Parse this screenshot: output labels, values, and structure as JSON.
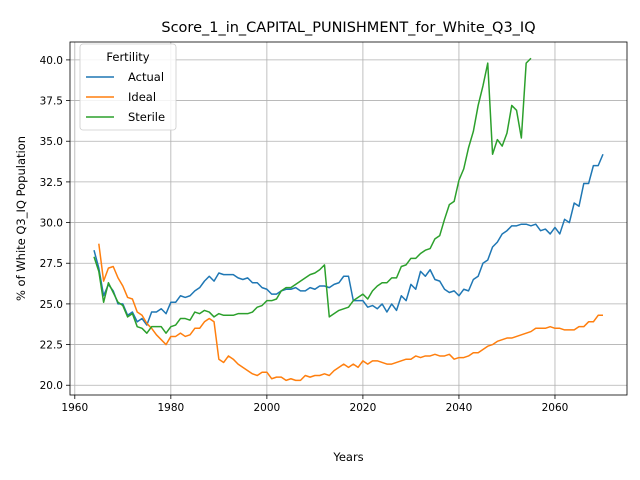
{
  "chart_data": {
    "type": "line",
    "title": "Score_1_in_CAPITAL_PUNISHMENT_for_White_Q3_IQ",
    "xlabel": "Years",
    "ylabel": "% of White Q3_IQ Population",
    "xlim": [
      1959,
      2075
    ],
    "ylim": [
      19.4,
      41.1
    ],
    "xticks": [
      1960,
      1980,
      2000,
      2020,
      2040,
      2060
    ],
    "yticks": [
      20.0,
      22.5,
      25.0,
      27.5,
      30.0,
      32.5,
      35.0,
      37.5,
      40.0
    ],
    "xtick_labels": [
      "1960",
      "1980",
      "2000",
      "2020",
      "2040",
      "2060"
    ],
    "ytick_labels": [
      "20.0",
      "22.5",
      "25.0",
      "27.5",
      "30.0",
      "32.5",
      "35.0",
      "37.5",
      "40.0"
    ],
    "grid": true,
    "legend": {
      "title": "Fertility",
      "position": "top-left"
    },
    "series": [
      {
        "name": "Actual",
        "color": "#1f77b4",
        "points": [
          [
            1964,
            28.3
          ],
          [
            1965,
            27.2
          ],
          [
            1966,
            25.5
          ],
          [
            1967,
            26.2
          ],
          [
            1968,
            25.8
          ],
          [
            1969,
            25.0
          ],
          [
            1970,
            25.0
          ],
          [
            1971,
            24.3
          ],
          [
            1972,
            24.5
          ],
          [
            1973,
            23.9
          ],
          [
            1974,
            24.1
          ],
          [
            1975,
            23.7
          ],
          [
            1976,
            24.5
          ],
          [
            1977,
            24.5
          ],
          [
            1978,
            24.7
          ],
          [
            1979,
            24.4
          ],
          [
            1980,
            25.1
          ],
          [
            1981,
            25.1
          ],
          [
            1982,
            25.5
          ],
          [
            1983,
            25.4
          ],
          [
            1984,
            25.5
          ],
          [
            1985,
            25.8
          ],
          [
            1986,
            26.0
          ],
          [
            1987,
            26.4
          ],
          [
            1988,
            26.7
          ],
          [
            1989,
            26.4
          ],
          [
            1990,
            26.9
          ],
          [
            1991,
            26.8
          ],
          [
            1992,
            26.8
          ],
          [
            1993,
            26.8
          ],
          [
            1994,
            26.6
          ],
          [
            1995,
            26.5
          ],
          [
            1996,
            26.6
          ],
          [
            1997,
            26.3
          ],
          [
            1998,
            26.3
          ],
          [
            1999,
            26.0
          ],
          [
            2000,
            25.9
          ],
          [
            2001,
            25.6
          ],
          [
            2002,
            25.6
          ],
          [
            2003,
            25.8
          ],
          [
            2004,
            25.9
          ],
          [
            2005,
            25.9
          ],
          [
            2006,
            26.0
          ],
          [
            2007,
            25.8
          ],
          [
            2008,
            25.8
          ],
          [
            2009,
            26.0
          ],
          [
            2010,
            25.9
          ],
          [
            2011,
            26.1
          ],
          [
            2012,
            26.1
          ],
          [
            2013,
            26.0
          ],
          [
            2014,
            26.2
          ],
          [
            2015,
            26.3
          ],
          [
            2016,
            26.7
          ],
          [
            2017,
            26.7
          ],
          [
            2018,
            25.2
          ],
          [
            2019,
            25.2
          ],
          [
            2020,
            25.2
          ],
          [
            2021,
            24.8
          ],
          [
            2022,
            24.9
          ],
          [
            2023,
            24.7
          ],
          [
            2024,
            25.0
          ],
          [
            2025,
            24.5
          ],
          [
            2026,
            25.0
          ],
          [
            2027,
            24.6
          ],
          [
            2028,
            25.5
          ],
          [
            2029,
            25.2
          ],
          [
            2030,
            26.2
          ],
          [
            2031,
            25.9
          ],
          [
            2032,
            27.0
          ],
          [
            2033,
            26.7
          ],
          [
            2034,
            27.1
          ],
          [
            2035,
            26.5
          ],
          [
            2036,
            26.4
          ],
          [
            2037,
            25.9
          ],
          [
            2038,
            25.7
          ],
          [
            2039,
            25.8
          ],
          [
            2040,
            25.5
          ],
          [
            2041,
            25.9
          ],
          [
            2042,
            25.8
          ],
          [
            2043,
            26.5
          ],
          [
            2044,
            26.7
          ],
          [
            2045,
            27.5
          ],
          [
            2046,
            27.7
          ],
          [
            2047,
            28.5
          ],
          [
            2048,
            28.8
          ],
          [
            2049,
            29.3
          ],
          [
            2050,
            29.5
          ],
          [
            2051,
            29.8
          ],
          [
            2052,
            29.8
          ],
          [
            2053,
            29.9
          ],
          [
            2054,
            29.9
          ],
          [
            2055,
            29.8
          ],
          [
            2056,
            29.9
          ],
          [
            2057,
            29.5
          ],
          [
            2058,
            29.6
          ],
          [
            2059,
            29.3
          ],
          [
            2060,
            29.7
          ],
          [
            2061,
            29.3
          ],
          [
            2062,
            30.2
          ],
          [
            2063,
            30.0
          ],
          [
            2064,
            31.2
          ],
          [
            2065,
            31.0
          ],
          [
            2066,
            32.4
          ],
          [
            2067,
            32.4
          ],
          [
            2068,
            33.5
          ],
          [
            2069,
            33.5
          ],
          [
            2070,
            34.2
          ]
        ]
      },
      {
        "name": "Ideal",
        "color": "#ff7f0e",
        "points": [
          [
            1965,
            28.7
          ],
          [
            1966,
            26.4
          ],
          [
            1967,
            27.2
          ],
          [
            1968,
            27.3
          ],
          [
            1969,
            26.6
          ],
          [
            1970,
            26.1
          ],
          [
            1971,
            25.4
          ],
          [
            1972,
            25.3
          ],
          [
            1973,
            24.5
          ],
          [
            1974,
            24.3
          ],
          [
            1975,
            23.8
          ],
          [
            1976,
            23.5
          ],
          [
            1977,
            23.1
          ],
          [
            1978,
            22.8
          ],
          [
            1979,
            22.5
          ],
          [
            1980,
            23.0
          ],
          [
            1981,
            23.0
          ],
          [
            1982,
            23.2
          ],
          [
            1983,
            23.0
          ],
          [
            1984,
            23.1
          ],
          [
            1985,
            23.5
          ],
          [
            1986,
            23.5
          ],
          [
            1987,
            23.9
          ],
          [
            1988,
            24.1
          ],
          [
            1989,
            23.9
          ],
          [
            1990,
            21.6
          ],
          [
            1991,
            21.4
          ],
          [
            1992,
            21.8
          ],
          [
            1993,
            21.6
          ],
          [
            1994,
            21.3
          ],
          [
            1995,
            21.1
          ],
          [
            1996,
            20.9
          ],
          [
            1997,
            20.7
          ],
          [
            1998,
            20.6
          ],
          [
            1999,
            20.8
          ],
          [
            2000,
            20.8
          ],
          [
            2001,
            20.4
          ],
          [
            2002,
            20.5
          ],
          [
            2003,
            20.5
          ],
          [
            2004,
            20.3
          ],
          [
            2005,
            20.4
          ],
          [
            2006,
            20.3
          ],
          [
            2007,
            20.3
          ],
          [
            2008,
            20.6
          ],
          [
            2009,
            20.5
          ],
          [
            2010,
            20.6
          ],
          [
            2011,
            20.6
          ],
          [
            2012,
            20.7
          ],
          [
            2013,
            20.6
          ],
          [
            2014,
            20.9
          ],
          [
            2015,
            21.1
          ],
          [
            2016,
            21.3
          ],
          [
            2017,
            21.1
          ],
          [
            2018,
            21.3
          ],
          [
            2019,
            21.1
          ],
          [
            2020,
            21.5
          ],
          [
            2021,
            21.3
          ],
          [
            2022,
            21.5
          ],
          [
            2023,
            21.5
          ],
          [
            2024,
            21.4
          ],
          [
            2025,
            21.3
          ],
          [
            2026,
            21.3
          ],
          [
            2027,
            21.4
          ],
          [
            2028,
            21.5
          ],
          [
            2029,
            21.6
          ],
          [
            2030,
            21.6
          ],
          [
            2031,
            21.8
          ],
          [
            2032,
            21.7
          ],
          [
            2033,
            21.8
          ],
          [
            2034,
            21.8
          ],
          [
            2035,
            21.9
          ],
          [
            2036,
            21.8
          ],
          [
            2037,
            21.8
          ],
          [
            2038,
            21.9
          ],
          [
            2039,
            21.6
          ],
          [
            2040,
            21.7
          ],
          [
            2041,
            21.7
          ],
          [
            2042,
            21.8
          ],
          [
            2043,
            22.0
          ],
          [
            2044,
            22.0
          ],
          [
            2045,
            22.2
          ],
          [
            2046,
            22.4
          ],
          [
            2047,
            22.5
          ],
          [
            2048,
            22.7
          ],
          [
            2049,
            22.8
          ],
          [
            2050,
            22.9
          ],
          [
            2051,
            22.9
          ],
          [
            2052,
            23.0
          ],
          [
            2053,
            23.1
          ],
          [
            2054,
            23.2
          ],
          [
            2055,
            23.3
          ],
          [
            2056,
            23.5
          ],
          [
            2057,
            23.5
          ],
          [
            2058,
            23.5
          ],
          [
            2059,
            23.6
          ],
          [
            2060,
            23.5
          ],
          [
            2061,
            23.5
          ],
          [
            2062,
            23.4
          ],
          [
            2063,
            23.4
          ],
          [
            2064,
            23.4
          ],
          [
            2065,
            23.6
          ],
          [
            2066,
            23.6
          ],
          [
            2067,
            23.9
          ],
          [
            2068,
            23.9
          ],
          [
            2069,
            24.3
          ],
          [
            2070,
            24.3
          ]
        ]
      },
      {
        "name": "Sterile",
        "color": "#2ca02c",
        "points": [
          [
            1964,
            27.9
          ],
          [
            1965,
            27.0
          ],
          [
            1966,
            25.1
          ],
          [
            1967,
            26.3
          ],
          [
            1968,
            25.7
          ],
          [
            1969,
            25.1
          ],
          [
            1970,
            24.9
          ],
          [
            1971,
            24.2
          ],
          [
            1972,
            24.4
          ],
          [
            1973,
            23.6
          ],
          [
            1974,
            23.5
          ],
          [
            1975,
            23.2
          ],
          [
            1976,
            23.6
          ],
          [
            1977,
            23.6
          ],
          [
            1978,
            23.6
          ],
          [
            1979,
            23.2
          ],
          [
            1980,
            23.6
          ],
          [
            1981,
            23.7
          ],
          [
            1982,
            24.1
          ],
          [
            1983,
            24.1
          ],
          [
            1984,
            24.0
          ],
          [
            1985,
            24.5
          ],
          [
            1986,
            24.4
          ],
          [
            1987,
            24.6
          ],
          [
            1988,
            24.5
          ],
          [
            1989,
            24.2
          ],
          [
            1990,
            24.4
          ],
          [
            1991,
            24.3
          ],
          [
            1992,
            24.3
          ],
          [
            1993,
            24.3
          ],
          [
            1994,
            24.4
          ],
          [
            1995,
            24.4
          ],
          [
            1996,
            24.4
          ],
          [
            1997,
            24.5
          ],
          [
            1998,
            24.8
          ],
          [
            1999,
            24.9
          ],
          [
            2000,
            25.2
          ],
          [
            2001,
            25.2
          ],
          [
            2002,
            25.3
          ],
          [
            2003,
            25.8
          ],
          [
            2004,
            26.0
          ],
          [
            2005,
            26.0
          ],
          [
            2006,
            26.2
          ],
          [
            2007,
            26.4
          ],
          [
            2008,
            26.6
          ],
          [
            2009,
            26.8
          ],
          [
            2010,
            26.9
          ],
          [
            2011,
            27.1
          ],
          [
            2012,
            27.4
          ],
          [
            2013,
            24.2
          ],
          [
            2014,
            24.4
          ],
          [
            2015,
            24.6
          ],
          [
            2016,
            24.7
          ],
          [
            2017,
            24.8
          ],
          [
            2018,
            25.2
          ],
          [
            2019,
            25.4
          ],
          [
            2020,
            25.6
          ],
          [
            2021,
            25.3
          ],
          [
            2022,
            25.8
          ],
          [
            2023,
            26.1
          ],
          [
            2024,
            26.3
          ],
          [
            2025,
            26.3
          ],
          [
            2026,
            26.6
          ],
          [
            2027,
            26.6
          ],
          [
            2028,
            27.3
          ],
          [
            2029,
            27.4
          ],
          [
            2030,
            27.8
          ],
          [
            2031,
            27.8
          ],
          [
            2032,
            28.1
          ],
          [
            2033,
            28.3
          ],
          [
            2034,
            28.4
          ],
          [
            2035,
            29.0
          ],
          [
            2036,
            29.2
          ],
          [
            2037,
            30.2
          ],
          [
            2038,
            31.1
          ],
          [
            2039,
            31.3
          ],
          [
            2040,
            32.6
          ],
          [
            2041,
            33.3
          ],
          [
            2042,
            34.6
          ],
          [
            2043,
            35.6
          ],
          [
            2044,
            37.2
          ],
          [
            2045,
            38.4
          ],
          [
            2046,
            39.8
          ],
          [
            2047,
            34.2
          ],
          [
            2048,
            35.1
          ],
          [
            2049,
            34.7
          ],
          [
            2050,
            35.5
          ],
          [
            2051,
            37.2
          ],
          [
            2052,
            36.9
          ],
          [
            2053,
            35.2
          ],
          [
            2054,
            39.8
          ],
          [
            2055,
            40.1
          ]
        ]
      }
    ]
  }
}
